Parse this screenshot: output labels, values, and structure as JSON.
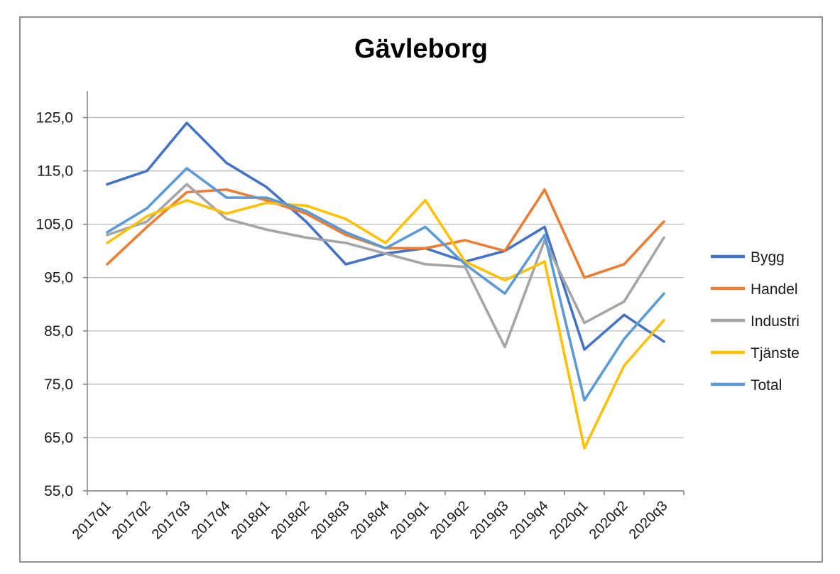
{
  "frame": {
    "border_color": "#8f8f8f",
    "background": "#ffffff"
  },
  "chart_data": {
    "type": "line",
    "title": "Gävleborg",
    "xlabel": "",
    "ylabel": "",
    "categories": [
      "2017q1",
      "2017q2",
      "2017q3",
      "2017q4",
      "2018q1",
      "2018q2",
      "2018q3",
      "2018q4",
      "2019q1",
      "2019q2",
      "2019q3",
      "2019q4",
      "2020q1",
      "2020q2",
      "2020q3"
    ],
    "series": [
      {
        "name": "Bygg",
        "color": "#4472C4",
        "values": [
          112.5,
          115,
          124,
          116.5,
          112,
          105.5,
          97.5,
          99.5,
          100.5,
          98,
          100,
          104.5,
          81.5,
          88,
          83
        ]
      },
      {
        "name": "Handel",
        "color": "#ED7D31",
        "values": [
          97.5,
          104.5,
          111,
          111.5,
          109.5,
          107,
          103,
          100.5,
          100.5,
          102,
          100,
          111.5,
          95,
          97.5,
          105.5
        ]
      },
      {
        "name": "Industri",
        "color": "#A5A5A5",
        "values": [
          103,
          105.5,
          112.5,
          106,
          104,
          102.5,
          101.5,
          99.5,
          97.5,
          97,
          82,
          102,
          86.5,
          90.5,
          102.5
        ]
      },
      {
        "name": "Tjänste",
        "color": "#FFC000",
        "values": [
          101.5,
          106.5,
          109.5,
          107,
          109,
          108.5,
          106,
          101.5,
          109.5,
          98,
          94.5,
          98,
          63,
          78.5,
          87
        ]
      },
      {
        "name": "Total",
        "color": "#5B9BD5",
        "values": [
          103.5,
          108,
          115.5,
          110,
          110,
          107.5,
          103.5,
          100.5,
          104.5,
          97.5,
          92,
          103,
          72,
          83.5,
          92
        ]
      }
    ],
    "y_axis": {
      "min": 55,
      "max": 130,
      "tick_step": 10,
      "tick_labels_top_down": [
        "125,0",
        "115,0",
        "105,0",
        "95,0",
        "85,0",
        "75,0",
        "65,0",
        "55,0"
      ],
      "gridlines": true,
      "gridline_color": "#b3b3b3",
      "axis_color": "#808080"
    },
    "x_axis": {
      "label_rotation_deg": -45
    },
    "legend": {
      "position": "right",
      "entries": [
        "Bygg",
        "Handel",
        "Industri",
        "Tjänste",
        "Total"
      ]
    }
  }
}
